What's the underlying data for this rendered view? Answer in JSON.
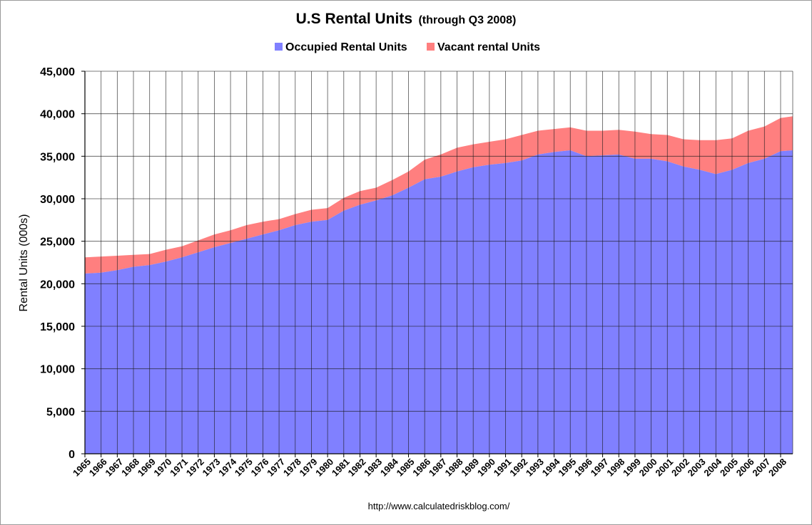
{
  "chart_data": {
    "type": "area",
    "stacked": true,
    "title": "U.S Rental Units",
    "subtitle": "(through Q3 2008)",
    "ylabel": "Rental Units (000s)",
    "xlabel": "",
    "ylim": [
      0,
      45000
    ],
    "yticks": [
      0,
      5000,
      10000,
      15000,
      20000,
      25000,
      30000,
      35000,
      40000,
      45000
    ],
    "ytick_labels": [
      "0",
      "5,000",
      "10,000",
      "15,000",
      "20,000",
      "25,000",
      "30,000",
      "35,000",
      "40,000",
      "45,000"
    ],
    "x_start": 1965,
    "x_end": 2008.75,
    "x_tick_labels": [
      "1965",
      "1966",
      "1967",
      "1968",
      "1969",
      "1970",
      "1971",
      "1972",
      "1973",
      "1974",
      "1975",
      "1976",
      "1977",
      "1978",
      "1979",
      "1980",
      "1981",
      "1982",
      "1983",
      "1984",
      "1985",
      "1986",
      "1987",
      "1988",
      "1989",
      "1990",
      "1991",
      "1992",
      "1993",
      "1994",
      "1995",
      "1996",
      "1997",
      "1998",
      "1999",
      "2000",
      "2001",
      "2002",
      "2003",
      "2004",
      "2005",
      "2006",
      "2007",
      "2008"
    ],
    "grid": true,
    "legend_position": "top",
    "colors": {
      "occupied": "#8080ff",
      "vacant": "#ff7f7f",
      "grid": "#1a1a1a",
      "plot_bg": "#ffffff"
    },
    "series": [
      {
        "name": "Occupied Rental Units",
        "key": "occupied",
        "x": [
          1965,
          1966,
          1967,
          1968,
          1969,
          1970,
          1971,
          1972,
          1973,
          1974,
          1975,
          1976,
          1977,
          1978,
          1979,
          1980,
          1981,
          1982,
          1983,
          1984,
          1985,
          1986,
          1987,
          1988,
          1989,
          1990,
          1991,
          1992,
          1993,
          1994,
          1995,
          1996,
          1997,
          1998,
          1999,
          2000,
          2001,
          2002,
          2003,
          2004,
          2005,
          2006,
          2007,
          2008,
          2008.75
        ],
        "values": [
          21200,
          21300,
          21600,
          22000,
          22200,
          22600,
          23100,
          23700,
          24300,
          24800,
          25300,
          25800,
          26300,
          26900,
          27300,
          27500,
          28600,
          29300,
          29800,
          30400,
          31300,
          32300,
          32600,
          33200,
          33700,
          34000,
          34200,
          34500,
          35200,
          35500,
          35700,
          35000,
          35100,
          35200,
          34700,
          34700,
          34400,
          33800,
          33400,
          32900,
          33400,
          34200,
          34700,
          35600,
          35700
        ]
      },
      {
        "name": "Vacant rental Units",
        "key": "vacant",
        "x": [
          1965,
          1966,
          1967,
          1968,
          1969,
          1970,
          1971,
          1972,
          1973,
          1974,
          1975,
          1976,
          1977,
          1978,
          1979,
          1980,
          1981,
          1982,
          1983,
          1984,
          1985,
          1986,
          1987,
          1988,
          1989,
          1990,
          1991,
          1992,
          1993,
          1994,
          1995,
          1996,
          1997,
          1998,
          1999,
          2000,
          2001,
          2002,
          2003,
          2004,
          2005,
          2006,
          2007,
          2008,
          2008.75
        ],
        "values": [
          1900,
          1900,
          1700,
          1400,
          1300,
          1400,
          1300,
          1400,
          1500,
          1500,
          1600,
          1500,
          1300,
          1300,
          1400,
          1400,
          1500,
          1600,
          1500,
          1800,
          1900,
          2300,
          2600,
          2800,
          2700,
          2700,
          2800,
          3000,
          2800,
          2700,
          2700,
          3000,
          2900,
          2900,
          3200,
          2900,
          3100,
          3200,
          3500,
          4000,
          3700,
          3800,
          3800,
          3900,
          4000
        ]
      }
    ]
  },
  "legend": [
    {
      "label": "Occupied Rental Units",
      "color": "#8080ff"
    },
    {
      "label": "Vacant rental Units",
      "color": "#ff7f7f"
    }
  ],
  "source_text": "http://www.calculatedriskblog.com/"
}
